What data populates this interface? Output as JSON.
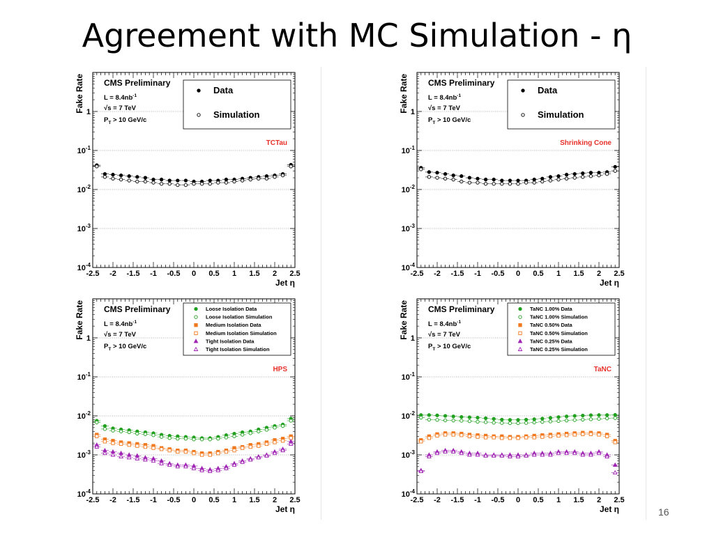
{
  "slide": {
    "title": "Agreement with MC Simulation - η",
    "page_number": "16"
  },
  "chart_data": [
    {
      "type": "scatter",
      "label": "TCTau",
      "label_color": "#e8302a",
      "ylabel": "Fake Rate",
      "xlabel": "Jet η",
      "log_y": true,
      "xlim": [
        -2.5,
        2.5
      ],
      "ylim": [
        0.0001,
        10
      ],
      "x_ticks": [
        "-2.5",
        "-2",
        "-1.5",
        "-1",
        "-0.5",
        "0",
        "0.5",
        "1",
        "1.5",
        "2",
        "2.5"
      ],
      "y_ticks": [
        "10^-4",
        "10^-3",
        "10^-2",
        "10^-1",
        "1"
      ],
      "grid_y": true,
      "text": {
        "cms": "CMS Preliminary",
        "lumi": "L = 8.4nb",
        "lumi_exp": "-1",
        "energy": "√s = 7 TeV",
        "pt_cut": "P",
        "pt_sub": "T",
        "pt_rest": " > 10 GeV/c"
      },
      "legend_style": "large",
      "x": [
        -2.4,
        -2.2,
        -2.0,
        -1.8,
        -1.6,
        -1.4,
        -1.2,
        -1.0,
        -0.8,
        -0.6,
        -0.4,
        -0.2,
        0.0,
        0.2,
        0.4,
        0.6,
        0.8,
        1.0,
        1.2,
        1.4,
        1.6,
        1.8,
        2.0,
        2.2,
        2.4
      ],
      "series": [
        {
          "name": "Data",
          "marker": "filled-circle",
          "color": "#000000",
          "values": [
            0.042,
            0.025,
            0.024,
            0.023,
            0.022,
            0.021,
            0.02,
            0.018,
            0.018,
            0.017,
            0.017,
            0.017,
            0.016,
            0.016,
            0.017,
            0.017,
            0.018,
            0.018,
            0.019,
            0.02,
            0.021,
            0.022,
            0.023,
            0.025,
            0.043
          ]
        },
        {
          "name": "Simulation",
          "marker": "open-circle",
          "color": "#000000",
          "values": [
            0.039,
            0.021,
            0.019,
            0.018,
            0.017,
            0.016,
            0.016,
            0.015,
            0.014,
            0.014,
            0.013,
            0.013,
            0.014,
            0.014,
            0.014,
            0.015,
            0.015,
            0.016,
            0.017,
            0.018,
            0.019,
            0.019,
            0.021,
            0.023,
            0.039
          ]
        }
      ]
    },
    {
      "type": "scatter",
      "label": "Shrinking Cone",
      "label_color": "#e8302a",
      "ylabel": "Fake Rate",
      "xlabel": "Jet η",
      "log_y": true,
      "xlim": [
        -2.5,
        2.5
      ],
      "ylim": [
        0.0001,
        10
      ],
      "x_ticks": [
        "-2.5",
        "-2",
        "-1.5",
        "-1",
        "-0.5",
        "0",
        "0.5",
        "1",
        "1.5",
        "2",
        "2.5"
      ],
      "y_ticks": [
        "10^-4",
        "10^-3",
        "10^-2",
        "10^-1",
        "1"
      ],
      "grid_y": true,
      "text": {
        "cms": "CMS Preliminary",
        "lumi": "L = 8.4nb",
        "lumi_exp": "-1",
        "energy": "√s = 7 TeV",
        "pt_cut": "P",
        "pt_sub": "T",
        "pt_rest": " > 10 GeV/c"
      },
      "legend_style": "large",
      "x": [
        -2.4,
        -2.2,
        -2.0,
        -1.8,
        -1.6,
        -1.4,
        -1.2,
        -1.0,
        -0.8,
        -0.6,
        -0.4,
        -0.2,
        0.0,
        0.2,
        0.4,
        0.6,
        0.8,
        1.0,
        1.2,
        1.4,
        1.6,
        1.8,
        2.0,
        2.2,
        2.4
      ],
      "series": [
        {
          "name": "Data",
          "marker": "filled-circle",
          "color": "#000000",
          "values": [
            0.036,
            0.028,
            0.027,
            0.025,
            0.023,
            0.022,
            0.02,
            0.019,
            0.018,
            0.018,
            0.017,
            0.017,
            0.017,
            0.017,
            0.018,
            0.019,
            0.021,
            0.022,
            0.024,
            0.025,
            0.026,
            0.027,
            0.027,
            0.028,
            0.038
          ]
        },
        {
          "name": "Simulation",
          "marker": "open-circle",
          "color": "#000000",
          "values": [
            0.033,
            0.021,
            0.02,
            0.019,
            0.018,
            0.016,
            0.015,
            0.015,
            0.014,
            0.014,
            0.014,
            0.014,
            0.014,
            0.015,
            0.015,
            0.016,
            0.017,
            0.018,
            0.019,
            0.02,
            0.021,
            0.022,
            0.023,
            0.025,
            0.03
          ]
        }
      ]
    },
    {
      "type": "scatter",
      "label": "HPS",
      "label_color": "#e8302a",
      "ylabel": "Fake Rate",
      "xlabel": "Jet η",
      "log_y": true,
      "xlim": [
        -2.5,
        2.5
      ],
      "ylim": [
        0.0001,
        10
      ],
      "x_ticks": [
        "-2.5",
        "-2",
        "-1.5",
        "-1",
        "-0.5",
        "0",
        "0.5",
        "1",
        "1.5",
        "2",
        "2.5"
      ],
      "y_ticks": [
        "10^-4",
        "10^-3",
        "10^-2",
        "10^-1",
        "1"
      ],
      "grid_y": true,
      "text": {
        "cms": "CMS Preliminary",
        "lumi": "L = 8.4nb",
        "lumi_exp": "-1",
        "energy": "√s = 7 TeV",
        "pt_cut": "P",
        "pt_sub": "T",
        "pt_rest": " > 10 GeV/c"
      },
      "legend_style": "small",
      "x": [
        -2.4,
        -2.2,
        -2.0,
        -1.8,
        -1.6,
        -1.4,
        -1.2,
        -1.0,
        -0.8,
        -0.6,
        -0.4,
        -0.2,
        0.0,
        0.2,
        0.4,
        0.6,
        0.8,
        1.0,
        1.2,
        1.4,
        1.6,
        1.8,
        2.0,
        2.2,
        2.4
      ],
      "series": [
        {
          "name": "Loose Isolation Data",
          "marker": "filled-circle",
          "color": "#22a020",
          "values": [
            0.0075,
            0.0055,
            0.0048,
            0.0045,
            0.0043,
            0.004,
            0.0038,
            0.0036,
            0.0033,
            0.0031,
            0.003,
            0.0029,
            0.0028,
            0.0027,
            0.0027,
            0.0029,
            0.0032,
            0.0035,
            0.0038,
            0.004,
            0.0045,
            0.005,
            0.0055,
            0.006,
            0.0085
          ]
        },
        {
          "name": "Loose Isolation Simulation",
          "marker": "open-circle",
          "color": "#22a020",
          "values": [
            0.0068,
            0.0046,
            0.0042,
            0.004,
            0.0038,
            0.0035,
            0.0034,
            0.0032,
            0.0029,
            0.0027,
            0.0026,
            0.0026,
            0.0025,
            0.0025,
            0.0025,
            0.0026,
            0.0028,
            0.003,
            0.0033,
            0.0036,
            0.004,
            0.0044,
            0.005,
            0.0055,
            0.0075
          ]
        },
        {
          "name": "Medium Isolation Data",
          "marker": "filled-square",
          "color": "#f0781e",
          "values": [
            0.0033,
            0.0025,
            0.0023,
            0.0021,
            0.002,
            0.0019,
            0.0018,
            0.0017,
            0.0015,
            0.0014,
            0.0013,
            0.0013,
            0.0012,
            0.0011,
            0.0011,
            0.0012,
            0.0013,
            0.0015,
            0.0016,
            0.0018,
            0.0019,
            0.0021,
            0.0024,
            0.0026,
            0.003
          ]
        },
        {
          "name": "Medium Isolation Simulation",
          "marker": "open-square",
          "color": "#f0781e",
          "values": [
            0.003,
            0.0022,
            0.002,
            0.0019,
            0.0018,
            0.0017,
            0.0016,
            0.0015,
            0.0014,
            0.0013,
            0.0012,
            0.0012,
            0.0011,
            0.001,
            0.001,
            0.0011,
            0.0012,
            0.0013,
            0.0015,
            0.0016,
            0.0017,
            0.0019,
            0.0021,
            0.0023,
            0.0027
          ]
        },
        {
          "name": "Tight Isolation Data",
          "marker": "filled-triangle",
          "color": "#a024b4",
          "values": [
            0.0018,
            0.0013,
            0.0012,
            0.0011,
            0.001,
            0.00095,
            0.00085,
            0.0008,
            0.0007,
            0.0006,
            0.00055,
            0.00055,
            0.00052,
            0.00045,
            0.00042,
            0.00045,
            0.0005,
            0.0006,
            0.0007,
            0.0008,
            0.0009,
            0.001,
            0.0012,
            0.0014,
            0.0022
          ]
        },
        {
          "name": "Tight Isolation Simulation",
          "marker": "open-triangle",
          "color": "#a024b4",
          "values": [
            0.0016,
            0.0011,
            0.001,
            0.0009,
            0.00085,
            0.0008,
            0.00075,
            0.0007,
            0.0006,
            0.00055,
            0.0005,
            0.0005,
            0.00045,
            0.0004,
            0.00038,
            0.0004,
            0.00045,
            0.00055,
            0.00065,
            0.00075,
            0.00085,
            0.00095,
            0.0011,
            0.0013,
            0.0019
          ]
        }
      ]
    },
    {
      "type": "scatter",
      "label": "TaNC",
      "label_color": "#e8302a",
      "ylabel": "Fake Rate",
      "xlabel": "Jet η",
      "log_y": true,
      "xlim": [
        -2.5,
        2.5
      ],
      "ylim": [
        0.0001,
        10
      ],
      "x_ticks": [
        "-2.5",
        "-2",
        "-1.5",
        "-1",
        "-0.5",
        "0",
        "0.5",
        "1",
        "1.5",
        "2",
        "2.5"
      ],
      "y_ticks": [
        "10^-4",
        "10^-3",
        "10^-2",
        "10^-1",
        "1"
      ],
      "grid_y": true,
      "text": {
        "cms": "CMS Preliminary",
        "lumi": "L = 8.4nb",
        "lumi_exp": "-1",
        "energy": "√s = 7 TeV",
        "pt_cut": "P",
        "pt_sub": "T",
        "pt_rest": " > 10 GeV/c"
      },
      "legend_style": "small",
      "x": [
        -2.4,
        -2.2,
        -2.0,
        -1.8,
        -1.6,
        -1.4,
        -1.2,
        -1.0,
        -0.8,
        -0.6,
        -0.4,
        -0.2,
        0.0,
        0.2,
        0.4,
        0.6,
        0.8,
        1.0,
        1.2,
        1.4,
        1.6,
        1.8,
        2.0,
        2.2,
        2.4
      ],
      "series": [
        {
          "name": "TaNC 1.00% Data",
          "marker": "filled-circle",
          "color": "#22a020",
          "values": [
            0.0105,
            0.0105,
            0.0103,
            0.01,
            0.0097,
            0.0094,
            0.0092,
            0.009,
            0.0087,
            0.0084,
            0.008,
            0.0079,
            0.0079,
            0.008,
            0.0082,
            0.0085,
            0.0089,
            0.0093,
            0.0097,
            0.01,
            0.0102,
            0.0104,
            0.0105,
            0.0105,
            0.0106
          ]
        },
        {
          "name": "TaNC 1.00% Simulation",
          "marker": "open-circle",
          "color": "#22a020",
          "values": [
            0.009,
            0.008,
            0.0079,
            0.0077,
            0.0076,
            0.0075,
            0.0073,
            0.0071,
            0.0069,
            0.0067,
            0.0066,
            0.0065,
            0.0065,
            0.0066,
            0.0068,
            0.007,
            0.0072,
            0.0074,
            0.0076,
            0.0078,
            0.008,
            0.0082,
            0.0084,
            0.0086,
            0.0088
          ]
        },
        {
          "name": "TaNC 0.50% Data",
          "marker": "filled-square",
          "color": "#f0781e",
          "values": [
            0.0024,
            0.003,
            0.0034,
            0.0036,
            0.0036,
            0.0035,
            0.0033,
            0.0032,
            0.0031,
            0.003,
            0.003,
            0.0029,
            0.0029,
            0.003,
            0.0031,
            0.0032,
            0.0033,
            0.0034,
            0.0035,
            0.0036,
            0.0037,
            0.0037,
            0.0036,
            0.0033,
            0.0023
          ]
        },
        {
          "name": "TaNC 0.50% Simulation",
          "marker": "open-square",
          "color": "#f0781e",
          "values": [
            0.0022,
            0.0027,
            0.0031,
            0.0033,
            0.0033,
            0.0032,
            0.003,
            0.0029,
            0.0028,
            0.0028,
            0.0027,
            0.0027,
            0.0027,
            0.0028,
            0.0028,
            0.0029,
            0.003,
            0.0031,
            0.0032,
            0.0033,
            0.0034,
            0.0034,
            0.0033,
            0.003,
            0.0021
          ]
        },
        {
          "name": "TaNC 0.25% Data",
          "marker": "filled-triangle",
          "color": "#a024b4",
          "values": [
            0.0004,
            0.001,
            0.0012,
            0.0013,
            0.0013,
            0.0012,
            0.0011,
            0.0011,
            0.001,
            0.001,
            0.001,
            0.001,
            0.001,
            0.001,
            0.0011,
            0.0011,
            0.0011,
            0.0012,
            0.0012,
            0.0012,
            0.0011,
            0.0011,
            0.0012,
            0.001,
            0.00055
          ]
        },
        {
          "name": "TaNC 0.25% Simulation",
          "marker": "open-triangle",
          "color": "#a024b4",
          "values": [
            0.00038,
            0.0009,
            0.0011,
            0.0012,
            0.0012,
            0.0011,
            0.001,
            0.001,
            0.00095,
            0.00095,
            0.00095,
            0.0009,
            0.0009,
            0.00095,
            0.001,
            0.001,
            0.001,
            0.0011,
            0.0011,
            0.0011,
            0.001,
            0.001,
            0.0011,
            0.0009,
            0.00035
          ]
        }
      ]
    }
  ]
}
